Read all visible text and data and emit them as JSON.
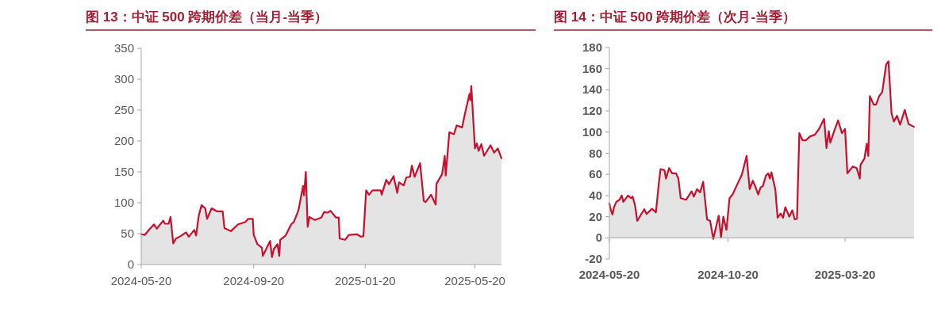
{
  "chart_data": [
    {
      "type": "area",
      "title": "图 13：中证 500 跨期价差（当月-当季）",
      "xlim": [
        "2024-05-20",
        "2025-06-18"
      ],
      "xticks": [
        "2024-05-20",
        "2024-09-20",
        "2025-01-20",
        "2025-05-20"
      ],
      "ylim": [
        0,
        350
      ],
      "yticks": [
        0,
        50,
        100,
        150,
        200,
        250,
        300,
        350
      ],
      "x": [
        "2024-05-20",
        "2024-05-24",
        "2024-05-29",
        "2024-06-03",
        "2024-06-06",
        "2024-06-13",
        "2024-06-15",
        "2024-06-19",
        "2024-06-21",
        "2024-06-24",
        "2024-06-27",
        "2024-07-02",
        "2024-07-08",
        "2024-07-11",
        "2024-07-17",
        "2024-07-19",
        "2024-07-22",
        "2024-07-25",
        "2024-07-29",
        "2024-07-31",
        "2024-08-05",
        "2024-08-11",
        "2024-08-17",
        "2024-08-19",
        "2024-08-26",
        "2024-09-03",
        "2024-09-11",
        "2024-09-14",
        "2024-09-19",
        "2024-09-20",
        "2024-09-24",
        "2024-09-29",
        "2024-09-30",
        "2024-10-08",
        "2024-10-10",
        "2024-10-12",
        "2024-10-16",
        "2024-10-18",
        "2024-10-19",
        "2024-10-25",
        "2024-10-31",
        "2024-11-03",
        "2024-11-08",
        "2024-11-13",
        "2024-11-14",
        "2024-11-16",
        "2024-11-18",
        "2024-11-20",
        "2024-11-26",
        "2024-12-03",
        "2024-12-06",
        "2024-12-10",
        "2024-12-13",
        "2024-12-19",
        "2024-12-22",
        "2024-12-23",
        "2024-12-29",
        "2025-01-02",
        "2025-01-11",
        "2025-01-15",
        "2025-01-18",
        "2025-01-21",
        "2025-01-24",
        "2025-01-28",
        "2025-02-06",
        "2025-02-07",
        "2025-02-12",
        "2025-02-15",
        "2025-02-20",
        "2025-02-24",
        "2025-02-26",
        "2025-03-03",
        "2025-03-06",
        "2025-03-10",
        "2025-03-12",
        "2025-03-15",
        "2025-03-21",
        "2025-03-25",
        "2025-03-27",
        "2025-04-02",
        "2025-04-07",
        "2025-04-08",
        "2025-04-14",
        "2025-04-17",
        "2025-04-18",
        "2025-04-22",
        "2025-04-27",
        "2025-04-30",
        "2025-05-06",
        "2025-05-09",
        "2025-05-14",
        "2025-05-15",
        "2025-05-16",
        "2025-05-20",
        "2025-05-22",
        "2025-05-24",
        "2025-05-27",
        "2025-05-30",
        "2025-06-06",
        "2025-06-10",
        "2025-06-14",
        "2025-06-18"
      ],
      "series": [
        {
          "color": "#c8102e",
          "values": [
            49,
            48,
            57,
            65,
            58,
            71,
            66,
            66,
            77,
            34,
            42,
            46,
            52,
            45,
            56,
            47,
            80,
            96,
            91,
            74,
            91,
            86,
            86,
            59,
            54,
            65,
            69,
            74,
            74,
            48,
            33,
            27,
            14,
            38,
            12,
            25,
            33,
            14,
            40,
            47,
            65,
            69,
            88,
            127,
            112,
            150,
            61,
            77,
            72,
            76,
            85,
            84,
            87,
            76,
            76,
            42,
            40,
            48,
            49,
            45,
            46,
            120,
            113,
            120,
            120,
            113,
            137,
            130,
            143,
            116,
            133,
            128,
            141,
            142,
            160,
            142,
            164,
            103,
            101,
            113,
            97,
            131,
            146,
            176,
            144,
            214,
            211,
            225,
            222,
            244,
            276,
            266,
            289,
            188,
            196,
            184,
            195,
            176,
            193,
            181,
            188,
            172
          ]
        }
      ]
    },
    {
      "type": "area",
      "title": "图 14：中证 500 跨期价差（次月-当季）",
      "xlim": [
        "2024-05-20",
        "2025-06-17"
      ],
      "xticks": [
        "2024-05-20",
        "2024-10-20",
        "2025-03-20"
      ],
      "ylim": [
        -20,
        180
      ],
      "yticks": [
        -20,
        0,
        20,
        40,
        60,
        80,
        100,
        120,
        140,
        160,
        180
      ],
      "x": [
        "2024-05-20",
        "2024-05-22",
        "2024-05-24",
        "2024-05-26",
        "2024-05-29",
        "2024-06-02",
        "2024-06-05",
        "2024-06-07",
        "2024-06-13",
        "2024-06-17",
        "2024-06-19",
        "2024-06-22",
        "2024-06-25",
        "2024-06-29",
        "2024-07-04",
        "2024-07-07",
        "2024-07-14",
        "2024-07-19",
        "2024-07-23",
        "2024-07-25",
        "2024-07-30",
        "2024-08-01",
        "2024-08-05",
        "2024-08-09",
        "2024-08-14",
        "2024-08-17",
        "2024-08-20",
        "2024-08-27",
        "2024-09-03",
        "2024-09-06",
        "2024-09-10",
        "2024-09-14",
        "2024-09-18",
        "2024-09-23",
        "2024-09-27",
        "2024-10-01",
        "2024-10-08",
        "2024-10-11",
        "2024-10-14",
        "2024-10-18",
        "2024-10-22",
        "2024-10-26",
        "2024-10-31",
        "2024-11-07",
        "2024-11-13",
        "2024-11-17",
        "2024-11-21",
        "2024-11-24",
        "2024-11-28",
        "2024-12-01",
        "2024-12-04",
        "2024-12-08",
        "2024-12-11",
        "2024-12-13",
        "2024-12-15",
        "2024-12-20",
        "2024-12-23",
        "2024-12-27",
        "2024-12-30",
        "2025-01-02",
        "2025-01-07",
        "2025-01-11",
        "2025-01-14",
        "2025-01-17",
        "2025-01-20",
        "2025-01-24",
        "2025-01-28",
        "2025-02-03",
        "2025-02-09",
        "2025-02-14",
        "2025-02-21",
        "2025-02-24",
        "2025-02-27",
        "2025-03-01",
        "2025-03-06",
        "2025-03-11",
        "2025-03-16",
        "2025-03-20",
        "2025-03-23",
        "2025-03-30",
        "2025-04-04",
        "2025-04-08",
        "2025-04-09",
        "2025-04-14",
        "2025-04-17",
        "2025-04-19",
        "2025-04-21",
        "2025-04-26",
        "2025-04-29",
        "2025-05-03",
        "2025-05-07",
        "2025-05-12",
        "2025-05-15",
        "2025-05-19",
        "2025-05-22",
        "2025-05-26",
        "2025-05-30",
        "2025-06-05",
        "2025-06-10",
        "2025-06-17"
      ],
      "series": [
        {
          "color": "#c8102e",
          "values": [
            32.5,
            26,
            22,
            29,
            34,
            36,
            40,
            34,
            40,
            37.5,
            39,
            31,
            16,
            21,
            27,
            22.5,
            27.5,
            24,
            53,
            65,
            64,
            56,
            66,
            61,
            61,
            56,
            37.5,
            36,
            44,
            39,
            46,
            43,
            53,
            17.5,
            16,
            -1,
            21,
            0.5,
            20,
            7.5,
            37.5,
            41,
            49,
            60,
            77.5,
            46,
            54,
            49,
            41,
            47.5,
            49,
            59,
            61,
            56,
            62,
            46,
            19,
            23,
            19,
            29,
            20,
            26,
            17.5,
            18,
            99,
            92.5,
            92,
            96,
            97.5,
            102.5,
            112.5,
            85,
            101,
            90,
            101,
            111,
            99,
            103,
            61,
            67.5,
            66,
            56,
            69,
            75,
            89,
            77.5,
            134,
            126,
            126,
            134,
            138,
            164,
            167,
            117.5,
            110,
            115.5,
            107,
            121,
            107.5,
            105
          ]
        }
      ]
    }
  ]
}
